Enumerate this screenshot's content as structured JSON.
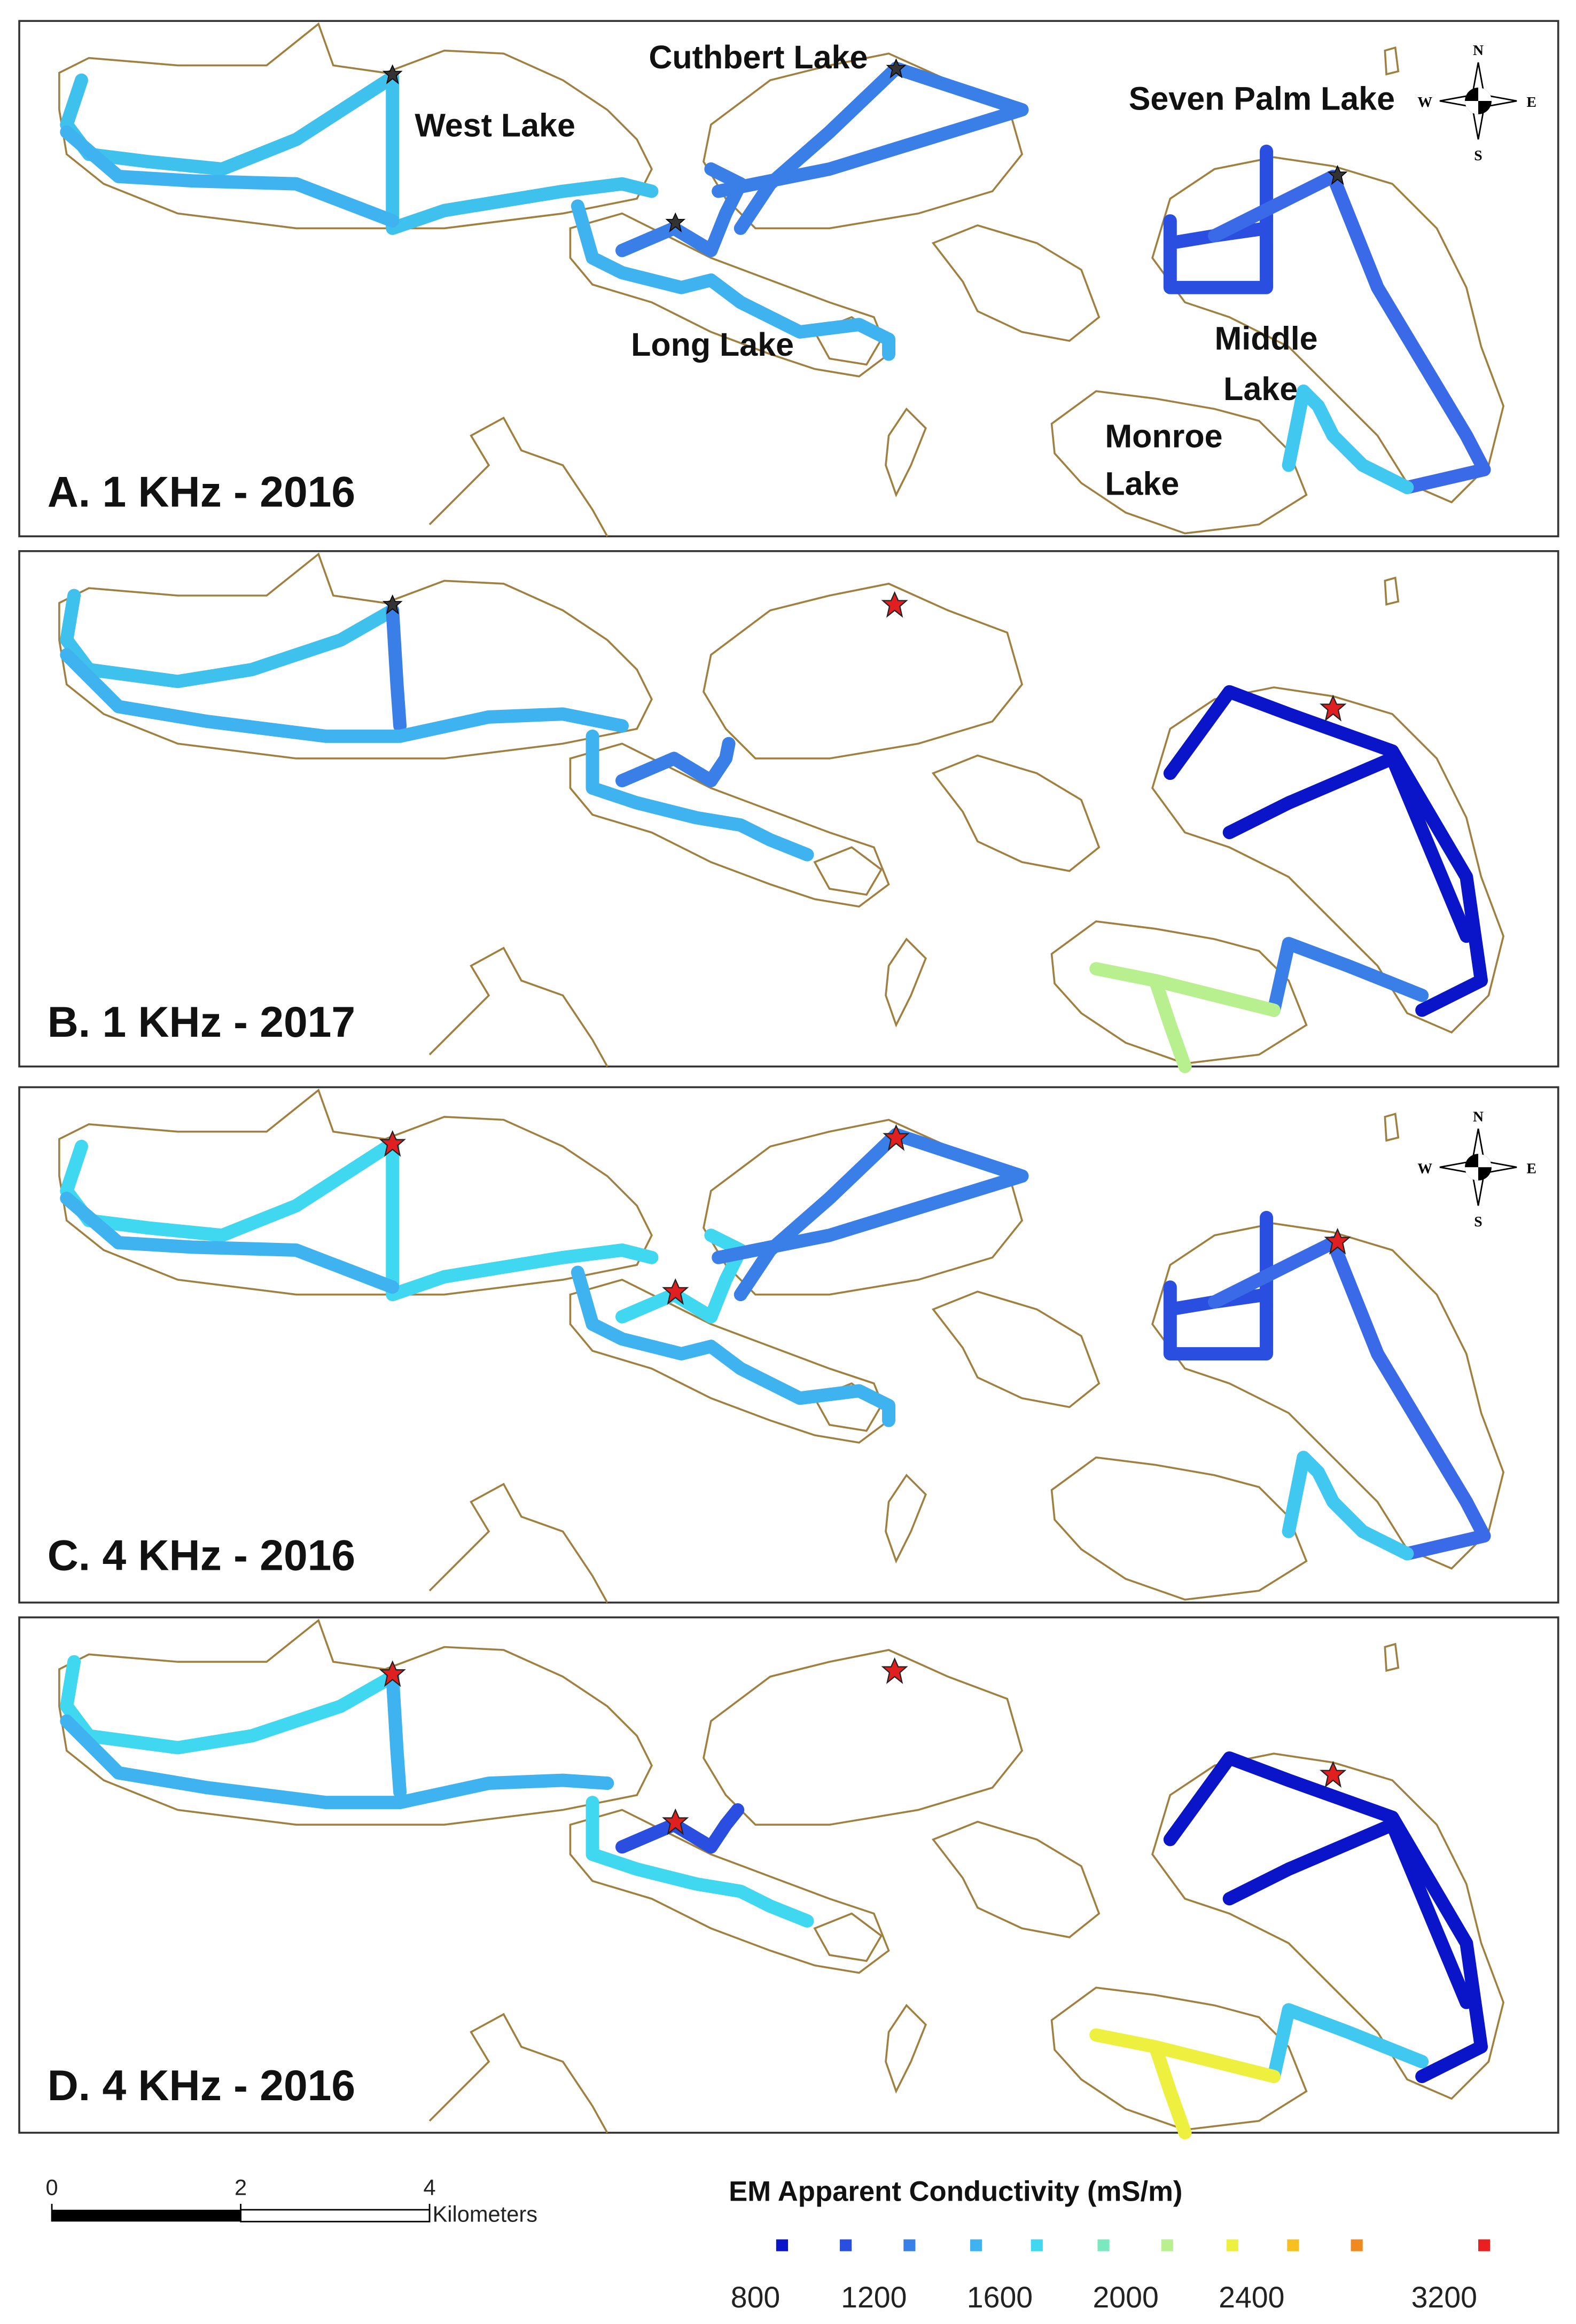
{
  "panels": [
    {
      "label": "A. 1 KHz - 2016",
      "lake_labels": [
        "West Lake",
        "Cuthbert Lake",
        "Long Lake",
        "Seven Palm Lake",
        "Middle",
        "Lake",
        "Monroe",
        "Lake"
      ]
    },
    {
      "label": "B. 1 KHz - 2017"
    },
    {
      "label": "C. 4 KHz - 2016"
    },
    {
      "label": "D. 4 KHz - 2016"
    }
  ],
  "compass": {
    "n": "N",
    "s": "S",
    "e": "E",
    "w": "W"
  },
  "scale_bar": {
    "ticks": [
      0,
      2,
      4
    ],
    "unit": "Kilometers"
  },
  "legend": {
    "title": "EM Apparent Conductivity (mS/m)",
    "colors": [
      "#0a14c8",
      "#2a4fe0",
      "#3a7ee8",
      "#3fb3f0",
      "#40d8f0",
      "#7ce8c0",
      "#b8f090",
      "#eef040",
      "#f5c020",
      "#f08a20",
      "#e82020"
    ],
    "ticks": [
      800,
      1200,
      1600,
      2000,
      2400,
      3200
    ]
  }
}
